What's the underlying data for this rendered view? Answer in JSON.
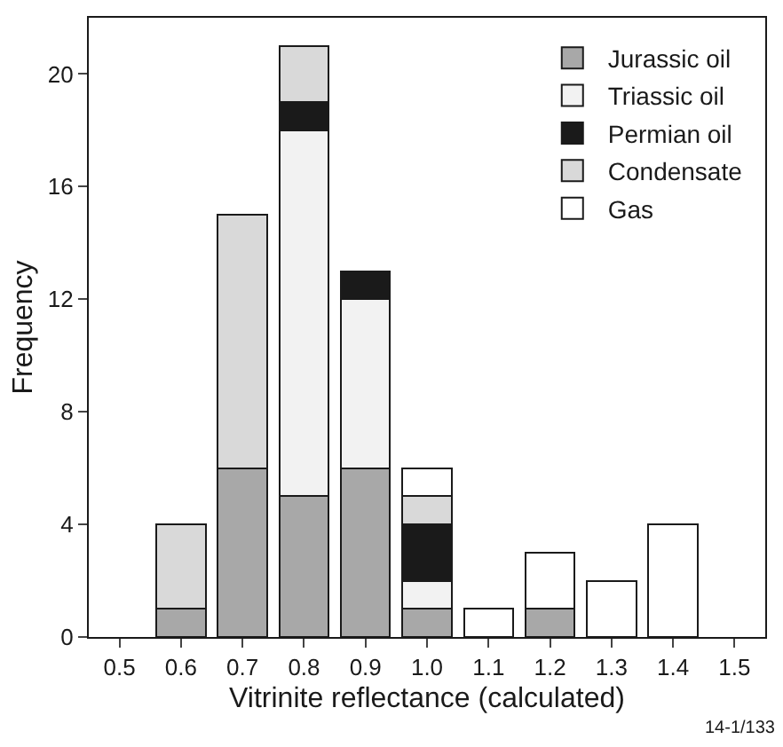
{
  "chart_data": {
    "type": "bar",
    "stacked": true,
    "xlabel": "Vitrinite reflectance (calculated)",
    "ylabel": "Frequency",
    "categories": [
      "0.5",
      "0.6",
      "0.7",
      "0.8",
      "0.9",
      "1.0",
      "1.1",
      "1.2",
      "1.3",
      "1.4",
      "1.5"
    ],
    "series": [
      {
        "name": "Jurassic oil",
        "color": "#a8a8a8",
        "values": [
          null,
          1,
          6,
          5,
          6,
          1,
          null,
          1,
          null,
          null,
          null
        ]
      },
      {
        "name": "Triassic oil",
        "color": "#f2f2f2",
        "values": [
          null,
          null,
          null,
          13,
          6,
          1,
          null,
          null,
          null,
          null,
          null
        ]
      },
      {
        "name": "Permian oil",
        "color": "#1a1a1a",
        "values": [
          null,
          null,
          null,
          1,
          1,
          2,
          null,
          null,
          null,
          null,
          null
        ]
      },
      {
        "name": "Condensate",
        "color": "#d9d9d9",
        "values": [
          null,
          3,
          9,
          2,
          null,
          1,
          null,
          null,
          null,
          null,
          null
        ]
      },
      {
        "name": "Gas",
        "color": "#ffffff",
        "values": [
          null,
          null,
          null,
          null,
          null,
          1,
          1,
          2,
          2,
          4,
          null
        ]
      }
    ],
    "ylim": [
      0,
      22
    ],
    "yticks": [
      0,
      4,
      8,
      12,
      16,
      20
    ],
    "legend": "top right",
    "annotations": [
      "14-1/133"
    ]
  }
}
